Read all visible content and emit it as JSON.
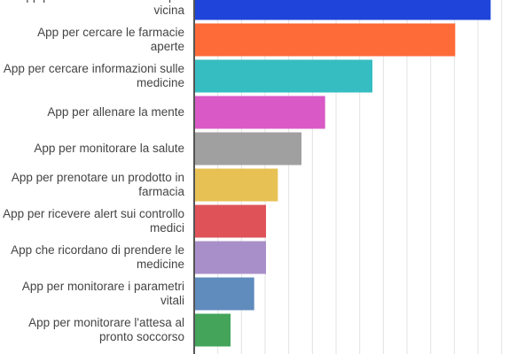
{
  "chart_data": {
    "type": "bar",
    "orientation": "horizontal",
    "categories": [
      "App per cercare la farmacia più vicina",
      "App per cercare le farmacie aperte",
      "App per cercare informazioni sulle medicine",
      "App per allenare la mente",
      "App per monitorare la salute",
      "App per prenotare un prodotto in farmacia",
      "App per ricevere alert sui controllo medici",
      "App che ricordano di prendere le medicine",
      "App per monitorare i parametri vitali",
      "App per monitorare l'attesa al pronto soccorso"
    ],
    "values": [
      12.5,
      11,
      7.5,
      5.5,
      4.5,
      3.5,
      3,
      3,
      2.5,
      1.5
    ],
    "colors": [
      "#1f44d9",
      "#fe6a38",
      "#36bdc1",
      "#d95ac6",
      "#a0a0a0",
      "#e8c154",
      "#df5358",
      "#a98fc9",
      "#5f8bbd",
      "#43a45a"
    ],
    "xlim": [
      0,
      13.5
    ],
    "grid": true,
    "title": "",
    "xlabel": "",
    "ylabel": ""
  }
}
